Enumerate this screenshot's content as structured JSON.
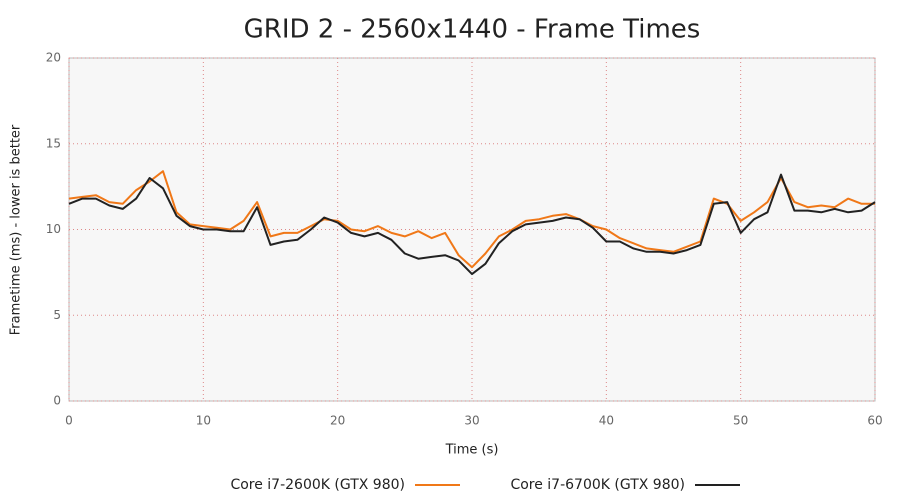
{
  "chart_data": {
    "type": "line",
    "title": "GRID 2 - 2560x1440 - Frame Times",
    "x_label": "Time (s)",
    "y_label": "Frametime (ms) - lower is better",
    "x": [
      0,
      1,
      2,
      3,
      4,
      5,
      6,
      7,
      8,
      9,
      10,
      11,
      12,
      13,
      14,
      15,
      16,
      17,
      18,
      19,
      20,
      21,
      22,
      23,
      24,
      25,
      26,
      27,
      28,
      29,
      30,
      31,
      32,
      33,
      34,
      35,
      36,
      37,
      38,
      39,
      40,
      41,
      42,
      43,
      44,
      45,
      46,
      47,
      48,
      49,
      50,
      51,
      52,
      53,
      54,
      55,
      56,
      57,
      58,
      59,
      60
    ],
    "series": [
      {
        "name": "Core i7-2600K (GTX 980)",
        "color": "#f07818",
        "values": [
          11.8,
          11.9,
          12.0,
          11.6,
          11.5,
          12.3,
          12.8,
          13.4,
          11.0,
          10.3,
          10.2,
          10.1,
          10.0,
          10.5,
          11.6,
          9.6,
          9.8,
          9.8,
          10.2,
          10.6,
          10.5,
          10.0,
          9.9,
          10.2,
          9.8,
          9.6,
          9.9,
          9.5,
          9.8,
          8.5,
          7.8,
          8.6,
          9.6,
          10.0,
          10.5,
          10.6,
          10.8,
          10.9,
          10.6,
          10.2,
          10.0,
          9.5,
          9.2,
          8.9,
          8.8,
          8.7,
          9.0,
          9.3,
          11.8,
          11.5,
          10.5,
          11.0,
          11.6,
          13.0,
          11.6,
          11.3,
          11.4,
          11.3,
          11.8,
          11.5,
          11.5
        ]
      },
      {
        "name": "Core i7-6700K (GTX 980)",
        "color": "#222222",
        "values": [
          11.5,
          11.8,
          11.8,
          11.4,
          11.2,
          11.8,
          13.0,
          12.4,
          10.8,
          10.2,
          10.0,
          10.0,
          9.9,
          9.9,
          11.3,
          9.1,
          9.3,
          9.4,
          10.0,
          10.7,
          10.4,
          9.8,
          9.6,
          9.8,
          9.4,
          8.6,
          8.3,
          8.4,
          8.5,
          8.2,
          7.4,
          8.0,
          9.2,
          9.9,
          10.3,
          10.4,
          10.5,
          10.7,
          10.6,
          10.1,
          9.3,
          9.3,
          8.9,
          8.7,
          8.7,
          8.6,
          8.8,
          9.1,
          11.5,
          11.6,
          9.8,
          10.6,
          11.0,
          13.2,
          11.1,
          11.1,
          11.0,
          11.2,
          11.0,
          11.1,
          11.6
        ]
      }
    ],
    "xlim": [
      0,
      60
    ],
    "ylim": [
      0,
      20
    ],
    "xticks": [
      0,
      10,
      20,
      30,
      40,
      50,
      60
    ],
    "yticks": [
      0,
      5,
      10,
      15,
      20
    ],
    "grid": true,
    "legend": "bottom"
  }
}
